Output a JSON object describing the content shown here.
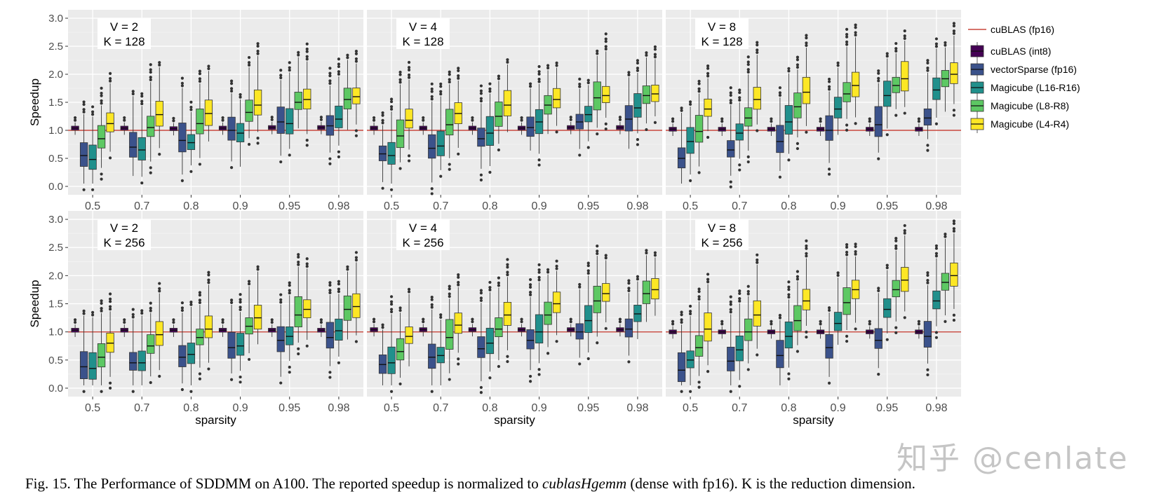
{
  "figure": {
    "caption_prefix": "Fig. 15.  The Performance of SDDMM on A100. The reported speedup is normalized to ",
    "caption_emph": "cublasHgemm",
    "caption_suffix": " (dense with fp16). K is the reduction dimension.",
    "watermark": "知乎 @cenlate"
  },
  "chart_data": {
    "type": "boxplot",
    "ylabel": "Speedup",
    "xlabel": "sparsity",
    "ylim": [
      -0.15,
      3.15
    ],
    "yticks": [
      "0.0",
      "0.5",
      "1.0",
      "1.5",
      "2.0",
      "2.5",
      "3.0"
    ],
    "ytick_values": [
      0.0,
      0.5,
      1.0,
      1.5,
      2.0,
      2.5,
      3.0
    ],
    "categories": [
      "0.5",
      "0.7",
      "0.8",
      "0.9",
      "0.95",
      "0.98"
    ],
    "reference_line": {
      "name": "cuBLAS (fp16)",
      "value": 1.0,
      "color": "#c8463c"
    },
    "series": [
      {
        "name": "cuBLAS (int8)",
        "color": "#440154"
      },
      {
        "name": "vectorSparse (fp16)",
        "color": "#3b528b"
      },
      {
        "name": "Magicube (L16-R16)",
        "color": "#21908c"
      },
      {
        "name": "Magicube (L8-R8)",
        "color": "#5dc863"
      },
      {
        "name": "Magicube (L4-R4)",
        "color": "#fde725"
      }
    ],
    "panels": [
      {
        "label_v": "V = 2",
        "label_k": "K = 128",
        "medians": [
          [
            1.04,
            0.55,
            0.48,
            0.85,
            1.12
          ],
          [
            1.04,
            0.7,
            0.65,
            1.05,
            1.28
          ],
          [
            1.03,
            0.82,
            0.78,
            1.12,
            1.3
          ],
          [
            1.04,
            1.0,
            0.95,
            1.32,
            1.45
          ],
          [
            1.05,
            1.15,
            1.12,
            1.5,
            1.55
          ],
          [
            1.05,
            1.08,
            1.2,
            1.55,
            1.6
          ]
        ]
      },
      {
        "label_v": "V = 4",
        "label_k": "K = 128",
        "medians": [
          [
            1.04,
            0.58,
            0.55,
            0.9,
            1.18
          ],
          [
            1.04,
            0.68,
            0.72,
            1.1,
            1.3
          ],
          [
            1.04,
            0.85,
            0.95,
            1.25,
            1.45
          ],
          [
            1.04,
            1.05,
            1.15,
            1.45,
            1.55
          ],
          [
            1.05,
            1.15,
            1.28,
            1.58,
            1.62
          ],
          [
            1.05,
            1.2,
            1.4,
            1.62,
            1.65
          ]
        ]
      },
      {
        "label_v": "V = 8",
        "label_k": "K = 128",
        "medians": [
          [
            1.02,
            0.5,
            0.8,
            0.98,
            1.38
          ],
          [
            1.02,
            0.65,
            0.95,
            1.22,
            1.55
          ],
          [
            1.02,
            0.8,
            1.15,
            1.42,
            1.68
          ],
          [
            1.02,
            1.0,
            1.38,
            1.65,
            1.8
          ],
          [
            1.02,
            1.1,
            1.62,
            1.8,
            1.92
          ],
          [
            1.02,
            1.22,
            1.72,
            1.92,
            2.0
          ]
        ]
      },
      {
        "label_v": "V = 2",
        "label_k": "K = 256",
        "medians": [
          [
            1.03,
            0.38,
            0.35,
            0.55,
            0.8
          ],
          [
            1.03,
            0.45,
            0.45,
            0.75,
            0.95
          ],
          [
            1.03,
            0.55,
            0.6,
            0.9,
            1.05
          ],
          [
            1.03,
            0.72,
            0.75,
            1.1,
            1.25
          ],
          [
            1.03,
            0.85,
            0.92,
            1.3,
            1.4
          ],
          [
            1.03,
            0.9,
            1.02,
            1.4,
            1.45
          ]
        ]
      },
      {
        "label_v": "V = 4",
        "label_k": "K = 256",
        "medians": [
          [
            1.04,
            0.42,
            0.45,
            0.65,
            0.92
          ],
          [
            1.04,
            0.55,
            0.58,
            0.9,
            1.12
          ],
          [
            1.04,
            0.7,
            0.8,
            1.05,
            1.3
          ],
          [
            1.04,
            0.85,
            1.0,
            1.3,
            1.5
          ],
          [
            1.04,
            1.0,
            1.2,
            1.55,
            1.68
          ],
          [
            1.04,
            1.05,
            1.32,
            1.68,
            1.75
          ]
        ]
      },
      {
        "label_v": "V = 8",
        "label_k": "K = 256",
        "medians": [
          [
            1.0,
            0.32,
            0.5,
            0.72,
            1.05
          ],
          [
            1.0,
            0.48,
            0.68,
            1.0,
            1.3
          ],
          [
            1.0,
            0.58,
            0.92,
            1.2,
            1.55
          ],
          [
            1.0,
            0.72,
            1.15,
            1.52,
            1.75
          ],
          [
            1.0,
            0.85,
            1.4,
            1.75,
            1.92
          ],
          [
            1.0,
            0.92,
            1.55,
            1.88,
            2.0
          ]
        ]
      }
    ]
  }
}
